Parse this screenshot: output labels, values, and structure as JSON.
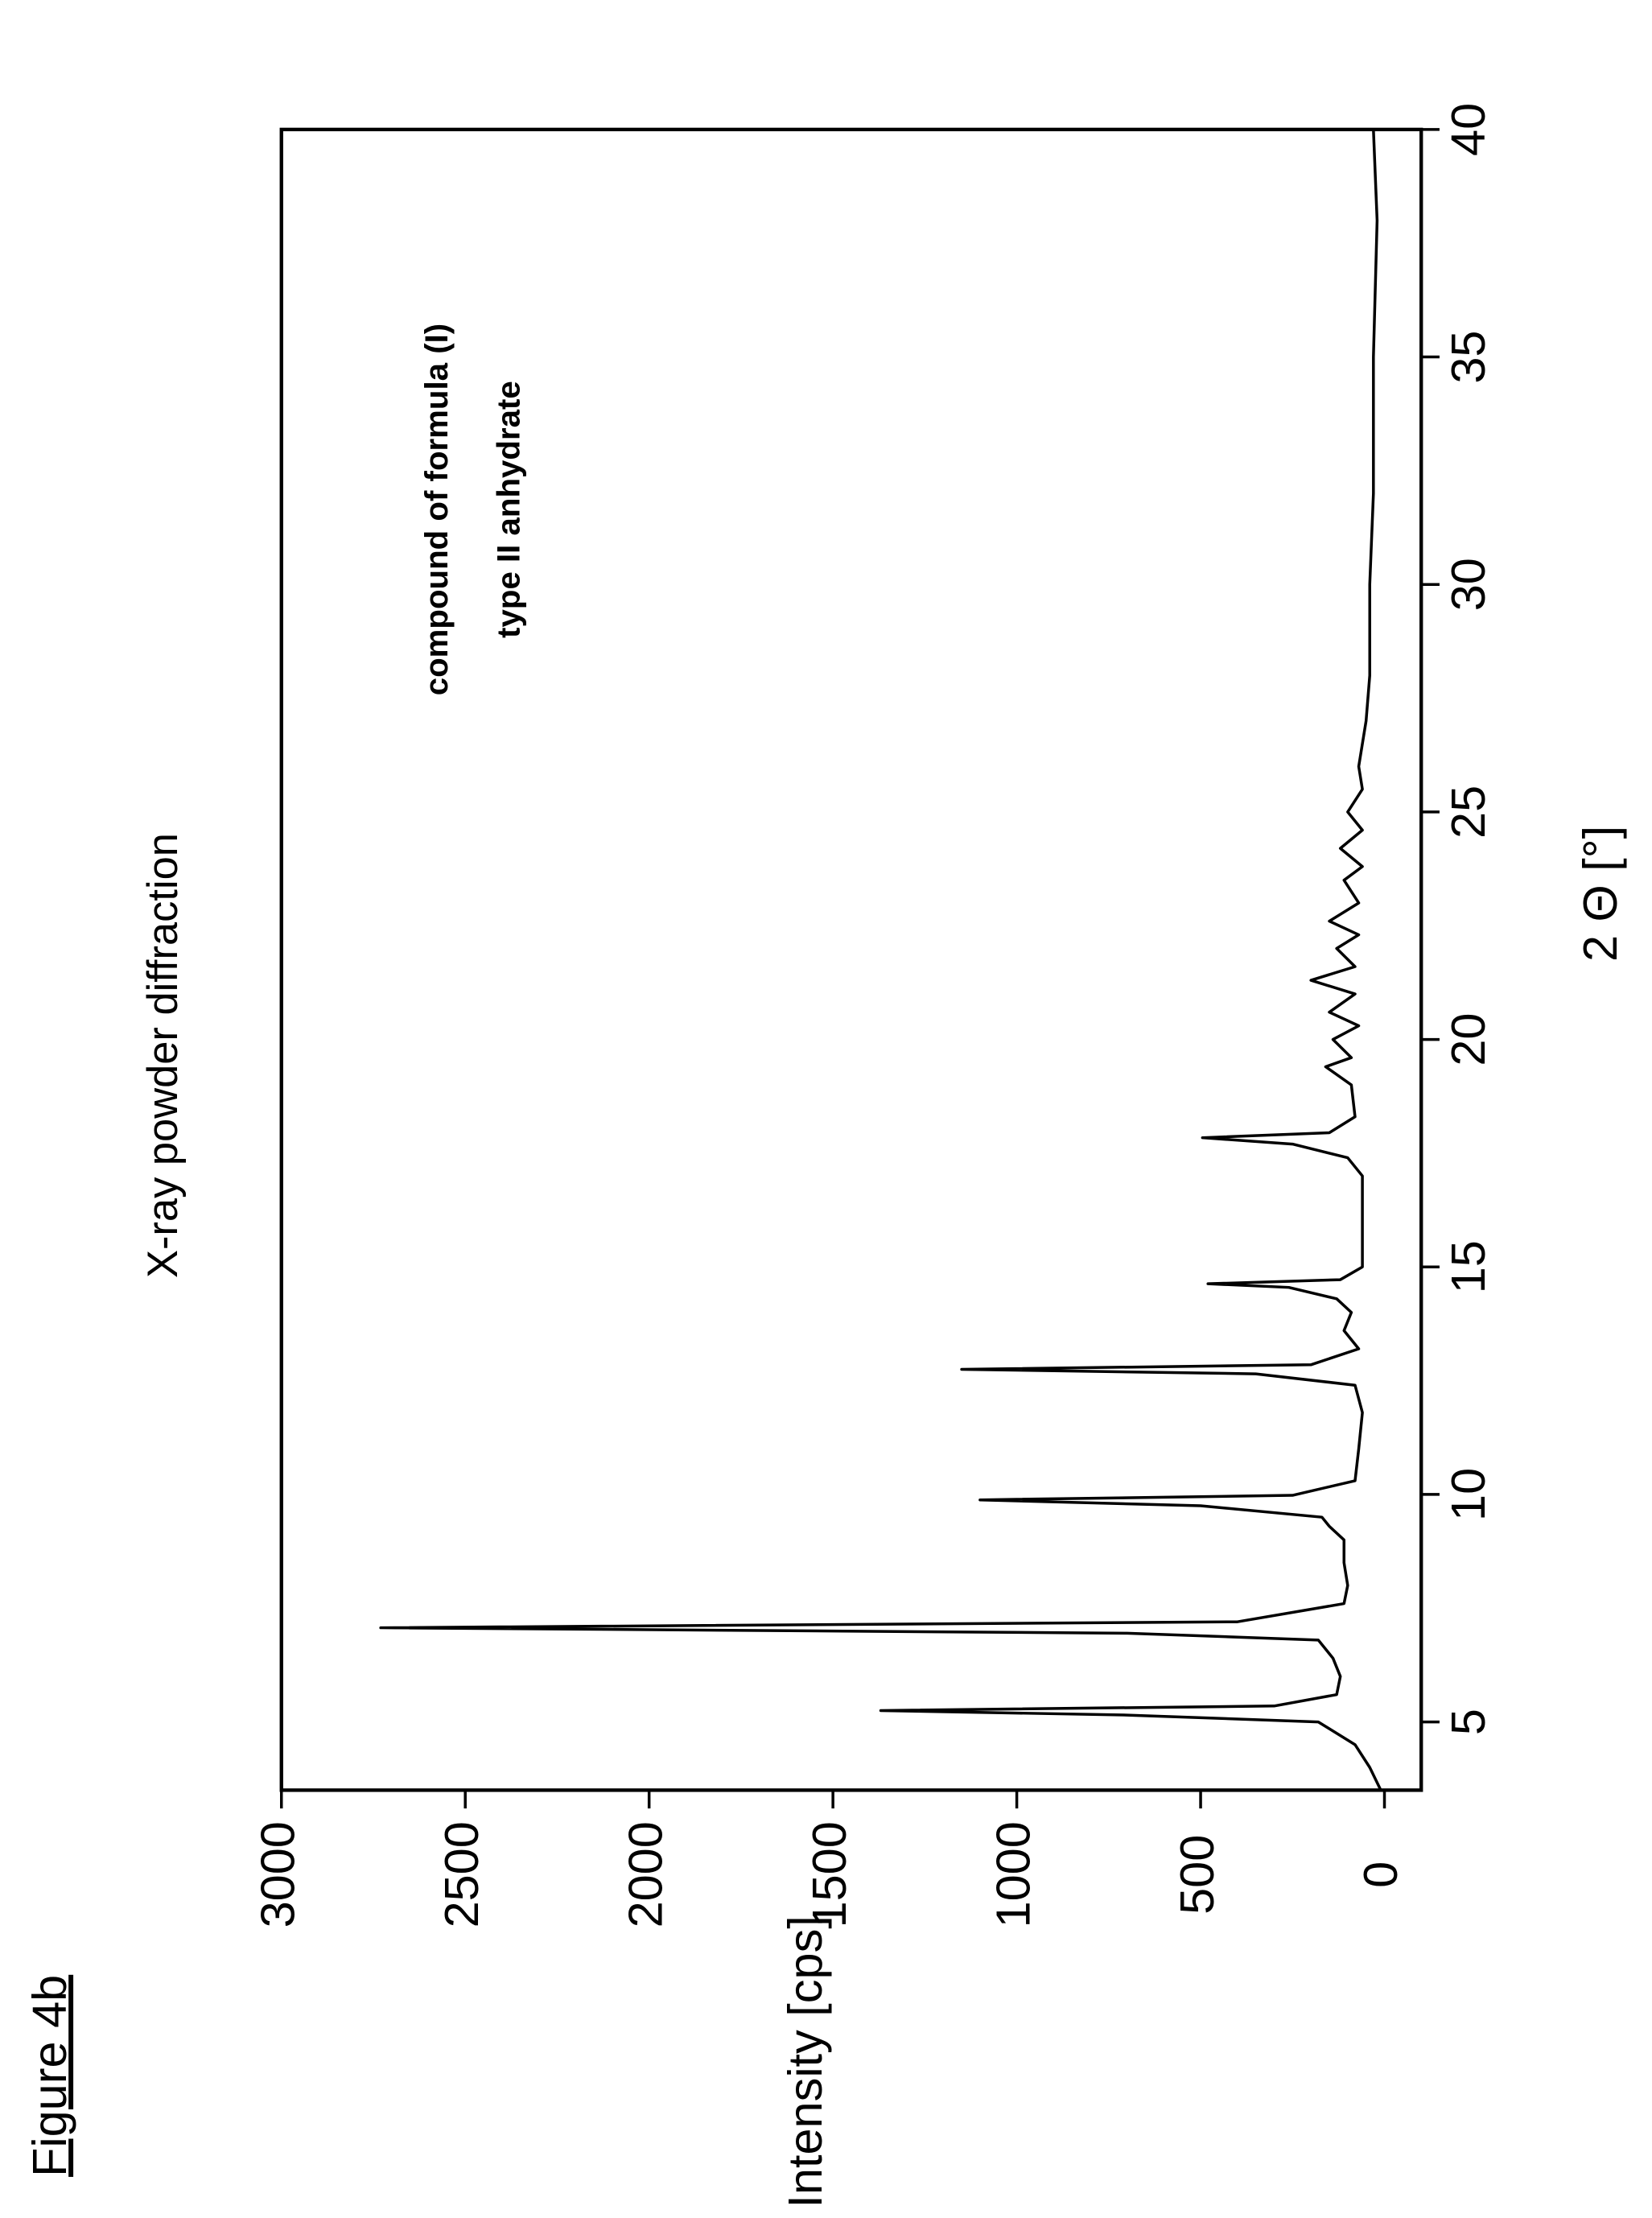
{
  "figure_label": "Figure 4b",
  "chart_data": {
    "type": "line",
    "title": "X-ray powder diffraction",
    "annotations": [
      "compound of formula (I)",
      "type II anhydrate"
    ],
    "x_label": "2 Θ [°]",
    "y_label": "Intensity  [cps]",
    "x": [
      3.5,
      4.0,
      4.5,
      5.0,
      5.15,
      5.25,
      5.35,
      5.6,
      6.0,
      6.4,
      6.8,
      6.95,
      7.07,
      7.2,
      7.6,
      8.0,
      8.5,
      9.0,
      9.3,
      9.5,
      9.75,
      9.88,
      9.98,
      10.3,
      11,
      11.8,
      12.4,
      12.65,
      12.75,
      12.85,
      13.2,
      13.6,
      14.0,
      14.3,
      14.55,
      14.63,
      14.72,
      15,
      16,
      17,
      17.4,
      17.7,
      17.84,
      17.95,
      18.3,
      19,
      19.4,
      19.6,
      20.0,
      20.3,
      20.6,
      21.0,
      21.3,
      21.6,
      22.0,
      22.3,
      22.6,
      23.0,
      23.5,
      23.8,
      24.2,
      24.6,
      25.0,
      25.5,
      26.0,
      27,
      28,
      30,
      32,
      35,
      38,
      40
    ],
    "values": [
      10,
      40,
      80,
      180,
      700,
      1370,
      300,
      130,
      120,
      140,
      180,
      700,
      2730,
      400,
      110,
      100,
      110,
      110,
      150,
      170,
      500,
      1100,
      250,
      80,
      70,
      60,
      80,
      350,
      1150,
      200,
      70,
      110,
      90,
      130,
      260,
      480,
      120,
      60,
      60,
      60,
      100,
      250,
      495,
      150,
      80,
      90,
      160,
      90,
      140,
      70,
      150,
      80,
      200,
      80,
      130,
      70,
      150,
      70,
      110,
      60,
      120,
      60,
      100,
      60,
      70,
      50,
      40,
      40,
      30,
      30,
      20,
      30
    ],
    "color": "#000000",
    "xlim": [
      3.5,
      40
    ],
    "xticks": [
      5,
      10,
      15,
      20,
      25,
      30,
      35,
      40
    ],
    "ylim": [
      -100,
      3000
    ],
    "yticks": [
      0,
      500,
      1000,
      1500,
      2000,
      2500,
      3000
    ],
    "rotation": -90
  }
}
